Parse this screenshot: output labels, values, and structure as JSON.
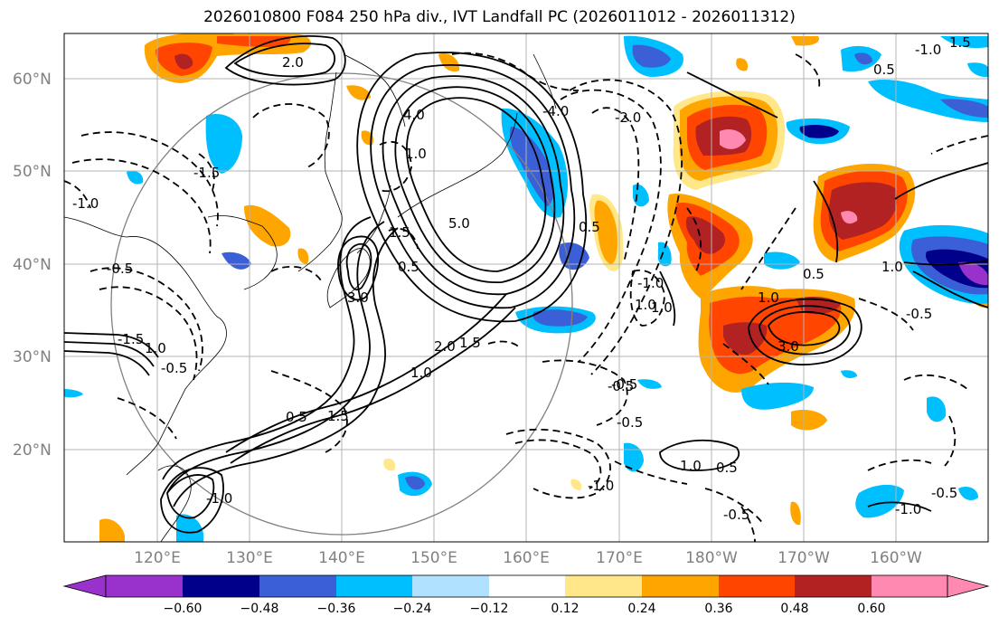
{
  "title": "2026010800 F084 250 hPa div., IVT Landfall PC (2026011012 - 2026011312)",
  "map": {
    "lat_ticks": [
      "20°N",
      "30°N",
      "40°N",
      "50°N",
      "60°N"
    ],
    "lon_ticks": [
      "120°E",
      "130°E",
      "140°E",
      "150°E",
      "160°E",
      "170°E",
      "180°W",
      "170°W",
      "160°W"
    ],
    "contour_labels": [
      "2.0",
      "4.0",
      "1.0",
      "1.5",
      "0.5",
      "5.0",
      "3.0",
      "2.0",
      "1.5",
      "1.0",
      "0.5",
      "1.0",
      "1.5",
      "-0.5",
      "-1.0",
      "-1.5",
      "-2.0",
      "-4.0",
      "-0.5",
      "-1.0",
      "-0.5",
      "-1.0",
      "1.0",
      "3.0",
      "-0.5",
      "-0.5",
      "1.0",
      "0.5",
      "-1.0",
      "1.0",
      "0.5",
      "-0.5",
      "-1.0",
      "1.0",
      "0.5",
      "-0.5",
      "1.5",
      "-0.5",
      "-1.0",
      "-1.5",
      "1.0",
      "0.5"
    ],
    "colorbar": {
      "ticks": [
        "−0.60",
        "−0.48",
        "−0.36",
        "−0.24",
        "−0.12",
        "0.12",
        "0.24",
        "0.36",
        "0.48",
        "0.60"
      ],
      "colors": [
        "#9932cc",
        "#00008b",
        "#3b5fd6",
        "#00bfff",
        "#b0e2ff",
        "#ffffff",
        "#ffe78a",
        "#ffa500",
        "#ff4500",
        "#b22222",
        "#ff89b0"
      ]
    }
  }
}
